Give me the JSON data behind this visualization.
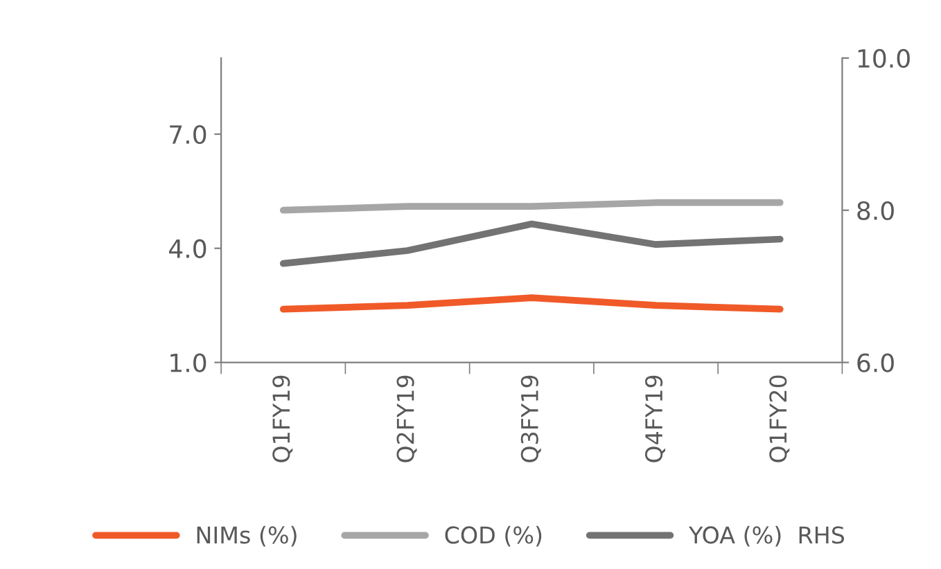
{
  "chart_data": {
    "type": "line",
    "categories": [
      "Q1FY19",
      "Q2FY19",
      "Q3FY19",
      "Q4FY19",
      "Q1FY20"
    ],
    "series": [
      {
        "name": "NIMs (%)",
        "color": "#f05a28",
        "values": [
          2.4,
          2.5,
          2.7,
          2.5,
          2.4
        ]
      },
      {
        "name": "COD (%)",
        "color": "#a6a6a6",
        "values": [
          5.0,
          5.1,
          5.1,
          5.2,
          5.2
        ]
      },
      {
        "name": "YOA (%)  RHS",
        "color": "#737373",
        "values": [
          7.3,
          7.47,
          7.82,
          7.55,
          7.62
        ],
        "axis": "y2"
      }
    ],
    "ylim": [
      1,
      9
    ],
    "yticks": [
      {
        "value": 1,
        "label": "1.0"
      },
      {
        "value": 4,
        "label": "4.0"
      },
      {
        "value": 7,
        "label": "7.0"
      }
    ],
    "y2lim": [
      6,
      10
    ],
    "y2ticks": [
      {
        "value": 6,
        "label": "6.0"
      },
      {
        "value": 8,
        "label": "8.0"
      },
      {
        "value": 10,
        "label": "10.0"
      }
    ],
    "grid": false,
    "legend": "bottom",
    "marker": "none",
    "line_style": "solid"
  }
}
